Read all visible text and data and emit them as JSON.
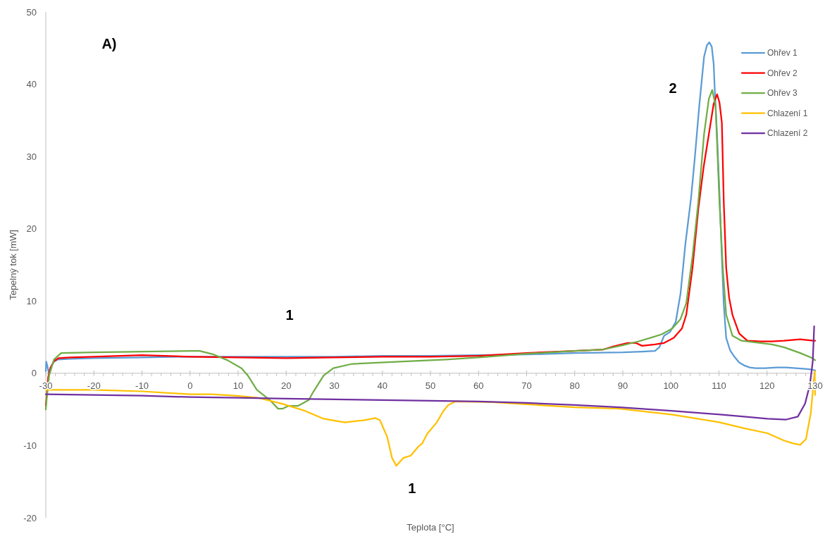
{
  "chart_data": {
    "type": "line",
    "xlabel": "Teplota [°C]",
    "ylabel": "Tepelný tok [mW]",
    "xlim": [
      -30,
      130
    ],
    "ylim": [
      -20,
      50
    ],
    "xticks": [
      -30,
      {
        "value": -28,
        "label": null
      },
      {
        "value": -26,
        "label": null
      },
      {
        "value": -24,
        "label": null
      },
      {
        "value": -22,
        "label": null
      },
      -20,
      {
        "value": -18,
        "label": null
      },
      {
        "value": -16,
        "label": null
      },
      {
        "value": -14,
        "label": null
      },
      {
        "value": -12,
        "label": null
      },
      -10,
      {
        "value": -8,
        "label": null
      },
      {
        "value": -6,
        "label": null
      },
      {
        "value": -4,
        "label": null
      },
      {
        "value": -2,
        "label": null
      },
      0,
      {
        "value": 2,
        "label": null
      },
      {
        "value": 4,
        "label": null
      },
      {
        "value": 6,
        "label": null
      },
      {
        "value": 8,
        "label": null
      },
      10,
      {
        "value": 12,
        "label": null
      },
      {
        "value": 14,
        "label": null
      },
      {
        "value": 16,
        "label": null
      },
      {
        "value": 18,
        "label": null
      },
      20,
      {
        "value": 22,
        "label": null
      },
      {
        "value": 24,
        "label": null
      },
      {
        "value": 26,
        "label": null
      },
      {
        "value": 28,
        "label": null
      },
      30,
      {
        "value": 32,
        "label": null
      },
      {
        "value": 34,
        "label": null
      },
      {
        "value": 36,
        "label": null
      },
      {
        "value": 38,
        "label": null
      },
      40,
      {
        "value": 42,
        "label": null
      },
      {
        "value": 44,
        "label": null
      },
      {
        "value": 46,
        "label": null
      },
      {
        "value": 48,
        "label": null
      },
      50,
      {
        "value": 52,
        "label": null
      },
      {
        "value": 54,
        "label": null
      },
      {
        "value": 56,
        "label": null
      },
      {
        "value": 58,
        "label": null
      },
      60,
      {
        "value": 62,
        "label": null
      },
      {
        "value": 64,
        "label": null
      },
      {
        "value": 66,
        "label": null
      },
      {
        "value": 68,
        "label": null
      },
      70,
      {
        "value": 72,
        "label": null
      },
      {
        "value": 74,
        "label": null
      },
      {
        "value": 76,
        "label": null
      },
      {
        "value": 78,
        "label": null
      },
      80,
      {
        "value": 82,
        "label": null
      },
      {
        "value": 84,
        "label": null
      },
      {
        "value": 86,
        "label": null
      },
      {
        "value": 88,
        "label": null
      },
      90,
      {
        "value": 92,
        "label": null
      },
      {
        "value": 94,
        "label": null
      },
      {
        "value": 96,
        "label": null
      },
      {
        "value": 98,
        "label": null
      },
      100,
      {
        "value": 102,
        "label": null
      },
      {
        "value": 104,
        "label": null
      },
      {
        "value": 106,
        "label": null
      },
      {
        "value": 108,
        "label": null
      },
      110,
      {
        "value": 112,
        "label": null
      },
      {
        "value": 114,
        "label": null
      },
      {
        "value": 116,
        "label": null
      },
      {
        "value": 118,
        "label": null
      },
      120,
      {
        "value": 122,
        "label": null
      },
      {
        "value": 124,
        "label": null
      },
      {
        "value": 126,
        "label": null
      },
      {
        "value": 128,
        "label": null
      },
      130
    ],
    "yticks": [
      -20,
      -10,
      0,
      10,
      20,
      30,
      40,
      50
    ],
    "legend": "top right",
    "annotations": [
      "A)",
      "2",
      "1",
      "1"
    ],
    "series": [
      {
        "name": "Ohřev 1",
        "color": "#5b9bd5",
        "x": [
          -30,
          -29.9,
          -29.6,
          -29.4,
          -29,
          -28.3,
          -27.5,
          -25,
          -20,
          -10,
          0,
          10,
          20,
          30,
          40,
          50,
          60,
          70,
          80,
          90,
          94,
          96.7,
          97.6,
          98.6,
          99.8,
          101,
          102,
          103,
          104.2,
          105,
          105.9,
          106.9,
          107.5,
          108,
          108.5,
          108.9,
          109.1,
          109.6,
          110.1,
          110.6,
          111,
          111.5,
          112.3,
          113.2,
          114.2,
          115.2,
          116.4,
          117.6,
          119.6,
          122,
          124,
          126,
          128,
          129.4,
          130
        ],
        "values": [
          0.3,
          1.6,
          0.8,
          0.1,
          0.8,
          1.6,
          1.9,
          2.0,
          2.1,
          2.2,
          2.3,
          2.3,
          2.3,
          2.3,
          2.4,
          2.4,
          2.5,
          2.6,
          2.8,
          2.9,
          3.0,
          3.1,
          3.6,
          5.2,
          5.7,
          7.1,
          11,
          17.8,
          24.3,
          30,
          37,
          43.8,
          45.4,
          45.8,
          45.2,
          42.8,
          39.6,
          33,
          25,
          16,
          9.5,
          4.9,
          3.2,
          2.3,
          1.5,
          1.1,
          0.8,
          0.7,
          0.7,
          0.8,
          0.8,
          0.7,
          0.6,
          0.5,
          0.4
        ]
      },
      {
        "name": "Ohřev 2",
        "color": "#ff0000",
        "x": [
          -30,
          -29.8,
          -29.5,
          -29,
          -28.3,
          -27.3,
          -25,
          -20,
          -10,
          0,
          10,
          20,
          30,
          40,
          50,
          60,
          70,
          80,
          86,
          88,
          91,
          92.7,
          94,
          96.7,
          98.6,
          100.6,
          102.3,
          103.2,
          104.5,
          105.7,
          106.8,
          107.9,
          108.9,
          109.6,
          110.1,
          110.6,
          111,
          111.5,
          112.1,
          112.8,
          114.2,
          115.9,
          118.6,
          121,
          123.5,
          126.9,
          129.6,
          130
        ],
        "values": [
          -4.5,
          -3,
          -0.5,
          0.8,
          1.7,
          2.1,
          2.2,
          2.3,
          2.5,
          2.3,
          2.2,
          2.1,
          2.2,
          2.3,
          2.3,
          2.4,
          2.8,
          3.1,
          3.3,
          3.7,
          4.2,
          4.2,
          3.8,
          4.0,
          4.2,
          4.9,
          6.2,
          8.1,
          14.6,
          22.7,
          28.5,
          33.1,
          37.3,
          38.6,
          37.5,
          34.7,
          23.7,
          14.6,
          10.5,
          8.1,
          5.5,
          4.5,
          4.4,
          4.4,
          4.5,
          4.7,
          4.5,
          4.5
        ]
      },
      {
        "name": "Ohřev 3",
        "color": "#70ad47",
        "x": [
          -30,
          -29.8,
          -29.3,
          -28.3,
          -26.8,
          -20,
          -10,
          0,
          2,
          4.9,
          7.8,
          10.7,
          12,
          13.9,
          16.6,
          18.3,
          19.3,
          20.5,
          22.5,
          24.7,
          25.6,
          27.8,
          29.8,
          33.7,
          43.5,
          50,
          53.2,
          60,
          70,
          80,
          86,
          90.1,
          93.2,
          96.2,
          98.1,
          100.3,
          102,
          103.2,
          104.5,
          105.7,
          106.9,
          107.9,
          108.6,
          109.3,
          110.1,
          110.8,
          111.5,
          112.8,
          114.7,
          118.6,
          121,
          123.5,
          126.9,
          129.4,
          130
        ],
        "values": [
          -5.0,
          -3.5,
          -0.3,
          1.9,
          2.8,
          2.9,
          3.0,
          3.1,
          3.1,
          2.6,
          1.8,
          0.7,
          -0.3,
          -2.3,
          -3.7,
          -4.9,
          -4.9,
          -4.5,
          -4.5,
          -3.7,
          -2.6,
          -0.3,
          0.7,
          1.3,
          1.6,
          1.8,
          1.9,
          2.2,
          2.7,
          3.1,
          3.3,
          3.9,
          4.4,
          5.0,
          5.4,
          6.2,
          7.5,
          9.7,
          16.2,
          23.7,
          33.1,
          38.0,
          39.2,
          37.0,
          23.7,
          14.6,
          8.1,
          5.2,
          4.5,
          4.2,
          4.0,
          3.6,
          2.8,
          2.1,
          1.8
        ]
      },
      {
        "name": "Chlazení 1",
        "color": "#ffc000",
        "x": [
          -30,
          -20,
          -10,
          0,
          4.4,
          9.3,
          14.2,
          19,
          23.9,
          27.8,
          32.2,
          36.1,
          38.6,
          39.5,
          41,
          42,
          42.9,
          43.7,
          44.4,
          45.9,
          47.4,
          48.3,
          49.3,
          51.3,
          52.7,
          53.7,
          55.2,
          63,
          70,
          80,
          89.3,
          100.1,
          110.2,
          115.2,
          120.1,
          123.5,
          125.4,
          126.9,
          128.1,
          129.1,
          129.9,
          130
        ],
        "values": [
          -2.3,
          -2.3,
          -2.5,
          -2.9,
          -2.9,
          -3.1,
          -3.4,
          -4.2,
          -5.2,
          -6.3,
          -6.8,
          -6.5,
          -6.2,
          -6.5,
          -8.8,
          -11.7,
          -12.8,
          -12.2,
          -11.7,
          -11.4,
          -10.2,
          -9.7,
          -8.4,
          -6.8,
          -5.2,
          -4.4,
          -3.9,
          -4.0,
          -4.3,
          -4.7,
          -4.9,
          -5.7,
          -6.8,
          -7.6,
          -8.3,
          -9.3,
          -9.7,
          -9.9,
          -9.1,
          -5.5,
          0.3,
          -3.0
        ]
      },
      {
        "name": "Chlazení 2",
        "color": "#7030a0",
        "x": [
          -30,
          -20,
          -10,
          0,
          10,
          20,
          30,
          40,
          50,
          60,
          70,
          80,
          89.3,
          100.1,
          110.2,
          115.2,
          120.1,
          124,
          126.4,
          127.9,
          128.9,
          129.5,
          129.8
        ],
        "values": [
          -2.9,
          -3.0,
          -3.1,
          -3.3,
          -3.4,
          -3.5,
          -3.6,
          -3.7,
          -3.8,
          -3.9,
          -4.1,
          -4.4,
          -4.7,
          -5.2,
          -5.7,
          -6.0,
          -6.3,
          -6.4,
          -6.0,
          -4.2,
          -1.6,
          1.6,
          6.5
        ]
      }
    ]
  }
}
